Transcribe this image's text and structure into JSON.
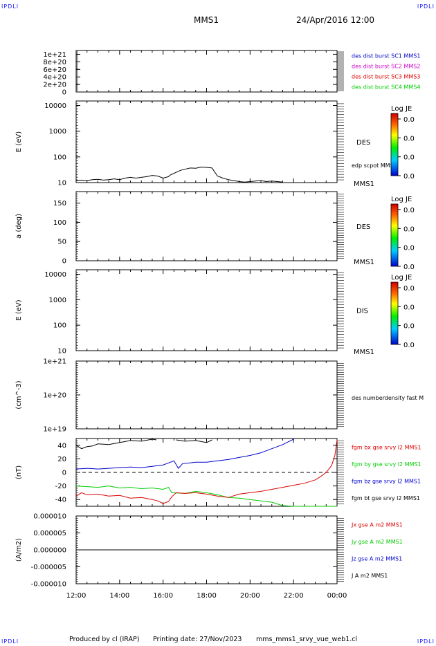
{
  "corner_labels": {
    "top_left": "IPDLI",
    "top_right": "IPDLI",
    "bottom_left": "IPDLI",
    "bottom_right": "IPDLI"
  },
  "header": {
    "spacecraft": "MMS1",
    "datetime": "24/Apr/2016 12:00"
  },
  "footer": {
    "produced_by": "Produced by cl (IRAP)",
    "printing_date": "Printing date: 27/Nov/2023",
    "filename": "mms_mms1_srvy_vue_web1.cl"
  },
  "colors": {
    "black": "#000000",
    "blue": "#0000cc",
    "magenta": "#cc00cc",
    "red": "#dd0000",
    "green": "#00cc00",
    "axis": "#000000"
  },
  "chart_data": [
    {
      "type": "line",
      "id": "p1",
      "ylabel": "",
      "y_ticks": [
        "1e+21",
        "8e+20",
        "6e+20",
        "4e+20",
        "2e+20",
        "0"
      ],
      "ylim": [
        0,
        1.1e+21
      ],
      "legend": [
        {
          "text": "des dist burst SC1 MMS1",
          "color": "#0000cc"
        },
        {
          "text": "des dist burst SC2 MMS2",
          "color": "#cc00cc"
        },
        {
          "text": "des dist burst SC3 MMS3",
          "color": "#dd0000"
        },
        {
          "text": "des dist burst SC4 MMS4",
          "color": "#00cc00"
        }
      ],
      "dashed_zero": true,
      "series": []
    },
    {
      "type": "line",
      "id": "p2",
      "ylabel": "E (eV)",
      "scale": "log",
      "y_ticks": [
        "10000",
        "1000",
        "100",
        "10"
      ],
      "ylim": [
        10,
        15000
      ],
      "right_label": "DES",
      "right_label2": "edp scpot MMS1",
      "bottom_right": "MMS1",
      "colorbar": {
        "title": "Log JE",
        "ticks": [
          "0.0",
          "0.0",
          "0.0",
          "0.0"
        ]
      },
      "series": [
        {
          "name": "edp scpot MMS1",
          "color": "#000000",
          "x": [
            0,
            0.25,
            0.5,
            0.75,
            1,
            1.25,
            1.5,
            1.75,
            2,
            2.25,
            2.5,
            2.75,
            3,
            3.25,
            3.5,
            3.75,
            4,
            4.25,
            4.3,
            4.4,
            4.6,
            4.8,
            5,
            5.25,
            5.5,
            5.75,
            6,
            6.25,
            6.5,
            6.75,
            7,
            7.25,
            7.5,
            7.75,
            8,
            8.25,
            8.5,
            8.75,
            9,
            9.25,
            9.5
          ],
          "y": [
            12,
            12.5,
            12,
            13,
            13.5,
            12.5,
            13,
            14,
            13,
            15,
            16,
            15,
            16,
            17,
            19,
            18,
            15,
            17,
            19,
            21,
            25,
            30,
            33,
            37,
            36,
            40,
            39,
            37,
            18,
            15,
            13,
            12,
            11,
            10.5,
            11,
            11.5,
            12,
            11,
            11.5,
            11,
            10.5
          ]
        }
      ]
    },
    {
      "type": "line",
      "id": "p3",
      "ylabel": "a (deg)",
      "y_ticks": [
        "150",
        "100",
        "50",
        "0"
      ],
      "ylim": [
        0,
        180
      ],
      "right_label": "DES",
      "bottom_right": "MMS1",
      "colorbar": {
        "title": "Log JE",
        "ticks": [
          "0.0",
          "0.0",
          "0.0",
          "0.0"
        ]
      },
      "series": []
    },
    {
      "type": "line",
      "id": "p4",
      "ylabel": "E (eV)",
      "scale": "log",
      "y_ticks": [
        "10000",
        "1000",
        "100",
        "10"
      ],
      "ylim": [
        10,
        15000
      ],
      "right_label": "DIS",
      "bottom_right": "MMS1",
      "colorbar": {
        "title": "Log JE",
        "ticks": [
          "0.0",
          "0.0",
          "0.0",
          "0.0"
        ]
      },
      "series": []
    },
    {
      "type": "line",
      "id": "p5",
      "ylabel": "(cm^-3)",
      "scale": "log",
      "y_ticks": [
        "1e+21",
        "1e+20",
        "1e+19"
      ],
      "ylim": [
        1e+19,
        1e+21
      ],
      "right_label2": "des numberdensity fast M",
      "series": []
    },
    {
      "type": "line",
      "id": "p6",
      "ylabel": "(nT)",
      "y_ticks": [
        "40",
        "20",
        "0",
        "-20",
        "-40"
      ],
      "ylim": [
        -50,
        50
      ],
      "dashed_zero": true,
      "legend": [
        {
          "text": "fgm bx gse srvy l2 MMS1",
          "color": "#dd0000"
        },
        {
          "text": "fgm by gse srvy l2 MMS1",
          "color": "#00cc00"
        },
        {
          "text": "fgm bz gse srvy l2 MMS1",
          "color": "#0000cc"
        },
        {
          "text": "fgm bt gse srvy l2 MMS1",
          "color": "#000000"
        }
      ],
      "series": [
        {
          "name": "fgm bt gse srvy l2 MMS1",
          "color": "#000000",
          "x": [
            0,
            0.25,
            0.5,
            0.75,
            1,
            1.5,
            2,
            2.5,
            3,
            3.5,
            3.7,
            4.5,
            4.6,
            5,
            5.5,
            6,
            6.25
          ],
          "y": [
            40,
            35,
            38,
            39,
            42,
            41,
            44,
            47,
            46,
            49,
            48,
            null,
            48,
            46,
            47,
            44,
            48
          ]
        },
        {
          "name": "fgm bz gse srvy l2 MMS1",
          "color": "#0000cc",
          "x": [
            0,
            0.5,
            1,
            1.5,
            2,
            2.5,
            3,
            3.5,
            4,
            4.25,
            4.5,
            4.7,
            4.9,
            5.25,
            5.5,
            6,
            6.5,
            7,
            7.5,
            8,
            8.5,
            9,
            9.5,
            10
          ],
          "y": [
            5,
            6,
            5,
            6,
            7,
            8,
            7,
            9,
            11,
            14,
            17,
            6,
            13,
            14,
            15,
            15,
            17,
            19,
            22,
            25,
            29,
            35,
            41,
            49
          ]
        },
        {
          "name": "fgm by gse srvy l2 MMS1",
          "color": "#00cc00",
          "x": [
            0,
            0.5,
            1,
            1.5,
            2,
            2.5,
            3,
            3.5,
            4,
            4.25,
            4.4,
            5,
            5.5,
            6,
            6.5,
            7,
            7.5,
            8,
            8.5,
            9,
            9.5,
            10,
            11,
            12
          ],
          "y": [
            -20,
            -21,
            -22,
            -20,
            -23,
            -22,
            -24,
            -23,
            -25,
            -22,
            -30,
            -31,
            -28,
            -30,
            -33,
            -37,
            -38,
            -40,
            -42,
            -44,
            -49,
            -55,
            -60,
            -62
          ]
        },
        {
          "name": "fgm bx gse srvy l2 MMS1",
          "color": "#dd0000",
          "x": [
            0,
            0.25,
            0.5,
            1,
            1.5,
            2,
            2.5,
            3,
            3.5,
            3.75,
            4,
            4.25,
            4.4,
            4.6,
            5,
            5.5,
            6,
            6.5,
            7,
            7.5,
            8,
            8.5,
            9,
            9.5,
            10,
            10.5,
            11,
            11.25,
            11.5,
            11.75,
            11.9,
            12
          ],
          "y": [
            -35,
            -30,
            -33,
            -32,
            -35,
            -34,
            -38,
            -37,
            -40,
            -42,
            -46,
            -43,
            -36,
            -30,
            -31,
            -30,
            -32,
            -35,
            -37,
            -32,
            -30,
            -28,
            -25,
            -22,
            -19,
            -16,
            -11,
            -6,
            0,
            10,
            25,
            48
          ]
        }
      ]
    },
    {
      "type": "line",
      "id": "p7",
      "ylabel": "(A/m2)",
      "y_ticks": [
        "0.000010",
        "0.000005",
        "0.000000",
        "-0.000005",
        "-0.000010"
      ],
      "ylim": [
        -1e-05,
        1e-05
      ],
      "xlabel_ticks": [
        "12:00",
        "14:00",
        "16:00",
        "18:00",
        "20:00",
        "22:00",
        "00:00"
      ],
      "legend": [
        {
          "text": "Jx gse A m2 MMS1",
          "color": "#dd0000"
        },
        {
          "text": "Jy gse A m2 MMS1",
          "color": "#00cc00"
        },
        {
          "text": "Jz gse A m2 MMS1",
          "color": "#0000cc"
        },
        {
          "text": "J A m2 MMS1",
          "color": "#000000"
        }
      ],
      "series": [
        {
          "name": "J A m2 MMS1",
          "color": "#000000",
          "x": [
            0,
            12
          ],
          "y": [
            0,
            0
          ]
        }
      ]
    }
  ]
}
